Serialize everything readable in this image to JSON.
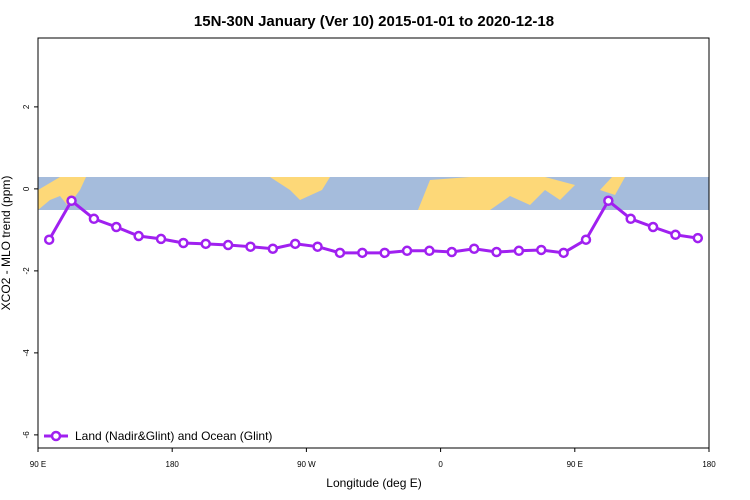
{
  "chart_data": {
    "type": "line",
    "title": "15N-30N January (Ver 10)   2015-01-01 to 2020-12-18",
    "x_label": "Longitude (deg E)",
    "y_label": "XCO2 - MLO trend (ppm)",
    "x": [
      97.5,
      112.5,
      127.5,
      142.5,
      157.5,
      172.5,
      187.5,
      202.5,
      217.5,
      232.5,
      247.5,
      262.5,
      277.5,
      292.5,
      307.5,
      322.5,
      337.5,
      352.5,
      367.5,
      382.5,
      397.5,
      412.5,
      427.5,
      442.5,
      457.5,
      472.5,
      487.5,
      502.5,
      517.5,
      532.5
    ],
    "series": [
      {
        "name": "Land (Nadir&Glint) and Ocean (Glint)",
        "color": "#a020f0",
        "values": [
          -1.24,
          -0.29,
          -0.73,
          -0.93,
          -1.15,
          -1.22,
          -1.32,
          -1.34,
          -1.37,
          -1.41,
          -1.46,
          -1.34,
          -1.41,
          -1.56,
          -1.56,
          -1.56,
          -1.51,
          -1.51,
          -1.54,
          -1.46,
          -1.54,
          -1.51,
          -1.49,
          -1.56,
          -1.24,
          -0.29,
          -0.73,
          -0.93,
          -1.12,
          -1.2
        ]
      }
    ],
    "xlim": [
      90,
      540
    ],
    "ylim": [
      -6.32,
      3.68
    ],
    "xticks": [
      {
        "value": 90,
        "label": "90 E"
      },
      180,
      {
        "value": 270,
        "label": "90 W"
      },
      {
        "value": 360,
        "label": "0"
      },
      {
        "value": 450,
        "label": "90 E"
      },
      {
        "value": 540,
        "label": "180"
      }
    ],
    "yticks": [
      2,
      0,
      -2,
      -4,
      -6
    ],
    "legend_position": "bottom-left"
  }
}
